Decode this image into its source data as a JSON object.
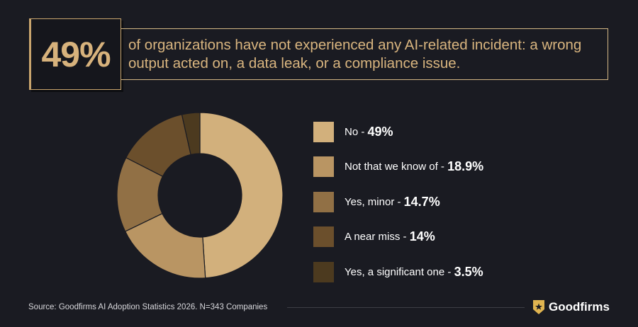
{
  "highlight": {
    "stat": "49%",
    "text": "of organizations have not experienced any AI-related incident: a wrong output acted on, a data leak, or a compliance issue."
  },
  "chart_data": {
    "type": "pie",
    "categories": [
      "No",
      "Not that we know of",
      "Yes, minor",
      "A near miss",
      "Yes, a significant one"
    ],
    "values": [
      49,
      18.9,
      14.7,
      14,
      3.5
    ],
    "value_labels": [
      "49%",
      "18.9%",
      "14.7%",
      "14%",
      "3.5%"
    ],
    "colors": [
      "#d2b07c",
      "#b99563",
      "#917045",
      "#6b4f2c",
      "#4c3a1f"
    ],
    "donut": true,
    "legend_placement": "right"
  },
  "legend": {
    "separator": " - "
  },
  "footer": {
    "source": "Source: Goodfirms AI Adoption Statistics 2026. N=343 Companies",
    "brand": "Goodfirms"
  },
  "colors": {
    "background": "#1a1b22",
    "accent": "#d7b27c"
  },
  "icons": {
    "brand_logo": "goodfirms-shield-star-icon"
  }
}
